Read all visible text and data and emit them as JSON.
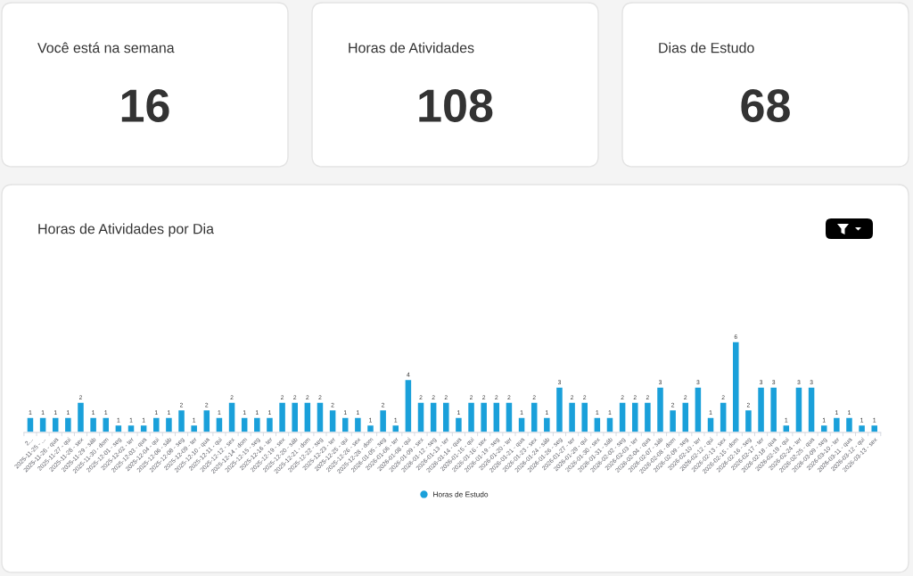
{
  "chart_data": [
    {
      "type": "other",
      "title": "Você está na semana",
      "annotations": [
        "16"
      ]
    },
    {
      "type": "other",
      "title": "Horas de Atividades",
      "annotations": [
        "108"
      ]
    },
    {
      "type": "other",
      "title": "Dias de Estudo",
      "annotations": [
        "68"
      ]
    },
    {
      "type": "bar",
      "title": "Horas de Atividades por Dia",
      "categories": [
        "2...",
        "2025-11-25 - ...",
        "2025-11-26 - qua",
        "2025-11-27 - qui",
        "2025-11-28 - sex",
        "2025-11-29 - sáb",
        "2025-11-30 - dom",
        "2025-12-01 - seg",
        "2025-12-02 - ter",
        "2025-12-03 - qua",
        "2025-12-04 - qui",
        "2025-12-06 - sáb",
        "2025-12-08 - seg",
        "2025-12-09 - ter",
        "2025-12-10 - qua",
        "2025-12-11 - qui",
        "2025-12-12 - sex",
        "2025-12-14 - dom",
        "2025-12-15 - seg",
        "2025-12-16 - ter",
        "2025-12-19 - sex",
        "2025-12-20 - sáb",
        "2025-12-21 - dom",
        "2025-12-22 - seg",
        "2025-12-23 - ter",
        "2025-12-25 - qui",
        "2025-12-26 - sex",
        "2025-12-28 - dom",
        "2026-01-05 - seg",
        "2026-01-06 - ter",
        "2026-01-08 - qui",
        "2026-01-09 - sex",
        "2026-01-12 - seg",
        "2026-01-13 - ter",
        "2026-01-14 - qua",
        "2026-01-15 - qui",
        "2026-01-16 - sex",
        "2026-01-19 - seg",
        "2026-01-20 - ter",
        "2026-01-21 - qua",
        "2026-01-23 - sex",
        "2026-01-24 - sáb",
        "2026-01-26 - seg",
        "2026-01-27 - ter",
        "2026-01-29 - qui",
        "2026-01-30 - sex",
        "2026-01-31 - sáb",
        "2026-02-02 - seg",
        "2026-02-03 - ter",
        "2026-02-04 - qua",
        "2026-02-07 - sáb",
        "2026-02-08 - dom",
        "2026-02-09 - seg",
        "2026-02-10 - ter",
        "2026-02-12 - qui",
        "2026-02-13 - sex",
        "2026-02-15 - dom",
        "2026-02-16 - seg",
        "2026-02-17 - ter",
        "2026-02-18 - qua",
        "2026-02-19 - qui",
        "2026-02-24 - ter",
        "2026-02-25 - qua",
        "2026-03-09 - seg",
        "2026-03-10 - ter",
        "2026-03-11 - qua",
        "2026-03-12 - qui",
        "2026-03-13 - sex"
      ],
      "series": [
        {
          "name": "Horas de Estudo",
          "color": "#1aa0da",
          "values": [
            1,
            1,
            1,
            1,
            2,
            1,
            1,
            0.5,
            0.5,
            0.5,
            1,
            1,
            1.5,
            0.5,
            1.5,
            1,
            2,
            1,
            1,
            1,
            2,
            2,
            2,
            2,
            1.5,
            1,
            1,
            0.5,
            1.5,
            0.5,
            3.5,
            2,
            2,
            2,
            1,
            2,
            2,
            2,
            2,
            1,
            2,
            1,
            3,
            2,
            2,
            1,
            1,
            2,
            2,
            2,
            3,
            1.5,
            2,
            3,
            1,
            2,
            6,
            1.5,
            3,
            3,
            0.5,
            3,
            3,
            0.5,
            1,
            1,
            0.5,
            0.5
          ],
          "value_labels": [
            "1",
            "1",
            "1",
            "1",
            "2",
            "1",
            "1",
            "1",
            "1",
            "1",
            "1",
            "1",
            "2",
            "1",
            "2",
            "1",
            "2",
            "1",
            "1",
            "1",
            "2",
            "2",
            "2",
            "2",
            "2",
            "1",
            "1",
            "1",
            "2",
            "1",
            "4",
            "2",
            "2",
            "2",
            "1",
            "2",
            "2",
            "2",
            "2",
            "1",
            "2",
            "1",
            "3",
            "2",
            "2",
            "1",
            "1",
            "2",
            "2",
            "2",
            "3",
            "2",
            "2",
            "3",
            "1",
            "2",
            "6",
            "2",
            "3",
            "3",
            "1",
            "3",
            "3",
            "1",
            "1",
            "1",
            "1",
            "1"
          ]
        }
      ],
      "legend": "bottom"
    }
  ]
}
